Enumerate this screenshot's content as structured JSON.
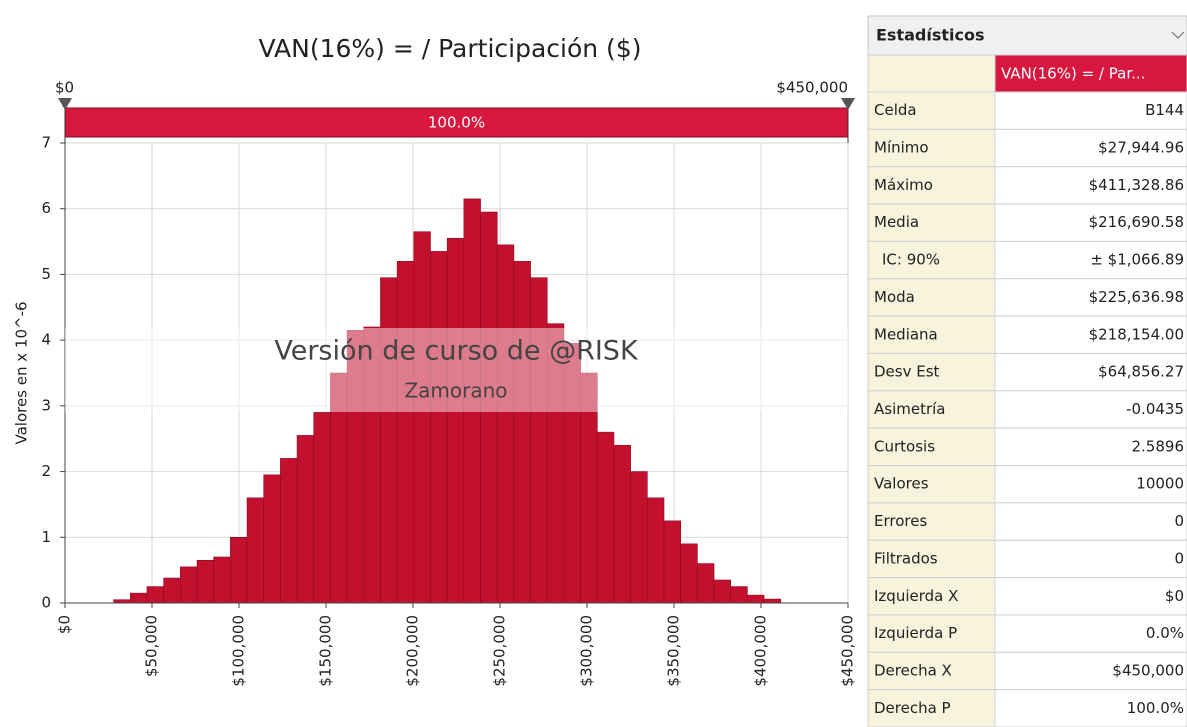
{
  "chart_data": {
    "type": "histogram",
    "title": "VAN(16%) = / Participación ($)",
    "y_label": "Valores en x 10^-6",
    "bins": [
      27945,
      37530,
      47115,
      56700,
      66285,
      75870,
      85455,
      95040,
      104625,
      114210,
      123795,
      133380,
      142965,
      152550,
      162135,
      171720,
      181305,
      190890,
      200475,
      210060,
      219645,
      229230,
      238815,
      248400,
      257985,
      267570,
      277155,
      286740,
      296325,
      305910,
      315495,
      325080,
      334665,
      344250,
      353835,
      363420,
      373005,
      382590,
      392175,
      401760,
      411345
    ],
    "values": [
      0.05,
      0.15,
      0.25,
      0.38,
      0.55,
      0.65,
      0.7,
      1.0,
      1.6,
      1.95,
      2.2,
      2.55,
      2.9,
      3.5,
      4.15,
      4.2,
      4.95,
      5.2,
      5.65,
      5.35,
      5.55,
      6.15,
      5.95,
      5.45,
      5.2,
      4.95,
      4.25,
      3.95,
      3.5,
      2.6,
      2.4,
      2.0,
      1.6,
      1.25,
      0.9,
      0.6,
      0.35,
      0.25,
      0.12,
      0.06
    ],
    "color": "#c4102f",
    "xlim": [
      0,
      450000
    ],
    "xticks": [
      {
        "value": 0,
        "label": "$0"
      },
      {
        "value": 50000,
        "label": "$50,000"
      },
      {
        "value": 100000,
        "label": "$100,000"
      },
      {
        "value": 150000,
        "label": "$150,000"
      },
      {
        "value": 200000,
        "label": "$200,000"
      },
      {
        "value": 250000,
        "label": "$250,000"
      },
      {
        "value": 300000,
        "label": "$300,000"
      },
      {
        "value": 350000,
        "label": "$350,000"
      },
      {
        "value": 400000,
        "label": "$400,000"
      },
      {
        "value": 450000,
        "label": "$450,000"
      }
    ],
    "ylim": [
      0,
      7
    ],
    "yticks": [
      0,
      1,
      2,
      3,
      4,
      5,
      6,
      7
    ],
    "grid": true,
    "delimiters": {
      "left": {
        "value": 0,
        "label": "$0"
      },
      "right": {
        "value": 450000,
        "label": "$450,000"
      },
      "middle_label": "100.0%"
    },
    "watermark": [
      "Versión de curso de @RISK",
      "Zamorano"
    ]
  },
  "stats_panel": {
    "title": "Estadísticos",
    "column_header": "VAN(16%) = / Par...",
    "rows": [
      [
        "Celda",
        "B144"
      ],
      [
        "Mínimo",
        "$27,944.96"
      ],
      [
        "Máximo",
        "$411,328.86"
      ],
      [
        "Media",
        "$216,690.58"
      ],
      [
        "IC: 90%",
        "± $1,066.89"
      ],
      [
        "Moda",
        "$225,636.98"
      ],
      [
        "Mediana",
        "$218,154.00"
      ],
      [
        "Desv Est",
        "$64,856.27"
      ],
      [
        "Asimetría",
        "-0.0435"
      ],
      [
        "Curtosis",
        "2.5896"
      ],
      [
        "Valores",
        "10000"
      ],
      [
        "Errores",
        "0"
      ],
      [
        "Filtrados",
        "0"
      ],
      [
        "Izquierda X",
        "$0"
      ],
      [
        "Izquierda P",
        "0.0%"
      ],
      [
        "Derecha X",
        "$450,000"
      ],
      [
        "Derecha P",
        "100.0%"
      ]
    ]
  }
}
